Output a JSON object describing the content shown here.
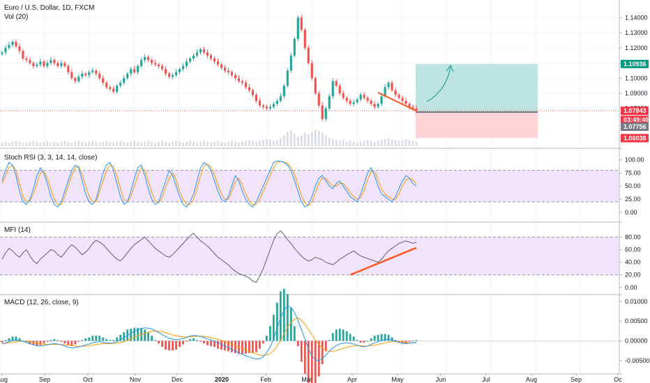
{
  "header": {
    "symbol": "Euro / U.S. Dollar, 1D, FXCM",
    "volume": "Vol (20)"
  },
  "price_tags": {
    "target": "1.10936",
    "current": "1.07843",
    "countdown": "03:49:40",
    "entry": "1.07756",
    "stop": "1.06038"
  },
  "colors": {
    "up": "#26a69a",
    "down": "#ef5350",
    "band": "#e1c4f9",
    "stoch_k": "#2196f3",
    "stoch_d": "#ff9800",
    "mfi": "#4caf50",
    "trend": "#ff5722",
    "target_zone": "#b2dfdb",
    "stop_zone": "#ffcdd2"
  },
  "chart_data": [
    {
      "type": "line",
      "name": "price",
      "title": "Euro / U.S. Dollar, 1D, FXCM",
      "ylim": [
        1.055,
        1.148
      ],
      "y_ticks": [
        "1.14000",
        "1.13000",
        "1.12000",
        "1.11000",
        "1.10000",
        "1.09000",
        "1.08000"
      ],
      "x_ticks": [
        "Aug",
        "Sep",
        "Oct",
        "Nov",
        "Dec",
        "2020",
        "Feb",
        "Mar",
        "Apr",
        "May",
        "Jun",
        "Jul",
        "Aug",
        "Sep",
        "Oc"
      ],
      "close": [
        1.117,
        1.12,
        1.122,
        1.124,
        1.121,
        1.118,
        1.113,
        1.112,
        1.11,
        1.108,
        1.109,
        1.111,
        1.108,
        1.11,
        1.112,
        1.11,
        1.108,
        1.11,
        1.108,
        1.104,
        1.1,
        1.098,
        1.101,
        1.103,
        1.102,
        1.104,
        1.105,
        1.103,
        1.1,
        1.097,
        1.094,
        1.093,
        1.091,
        1.095,
        1.097,
        1.1,
        1.103,
        1.106,
        1.104,
        1.108,
        1.112,
        1.114,
        1.112,
        1.11,
        1.109,
        1.108,
        1.106,
        1.103,
        1.101,
        1.102,
        1.104,
        1.106,
        1.108,
        1.111,
        1.113,
        1.115,
        1.117,
        1.119,
        1.117,
        1.115,
        1.113,
        1.111,
        1.109,
        1.107,
        1.105,
        1.104,
        1.102,
        1.1,
        1.098,
        1.097,
        1.094,
        1.092,
        1.089,
        1.085,
        1.082,
        1.081,
        1.08,
        1.081,
        1.083,
        1.085,
        1.088,
        1.095,
        1.105,
        1.115,
        1.126,
        1.14,
        1.132,
        1.12,
        1.11,
        1.1,
        1.09,
        1.082,
        1.073,
        1.08,
        1.088,
        1.098,
        1.095,
        1.09,
        1.087,
        1.085,
        1.083,
        1.084,
        1.086,
        1.089,
        1.087,
        1.085,
        1.083,
        1.081,
        1.083,
        1.088,
        1.094,
        1.097,
        1.092,
        1.089,
        1.087,
        1.085,
        1.083,
        1.081,
        1.08,
        1.0784
      ],
      "volume": [
        4,
        5,
        4,
        5,
        6,
        5,
        4,
        4,
        5,
        6,
        5,
        4,
        5,
        6,
        4,
        5,
        4,
        5,
        6,
        5,
        4,
        5,
        6,
        5,
        4,
        5,
        6,
        5,
        4,
        5,
        6,
        5,
        4,
        5,
        6,
        5,
        4,
        5,
        6,
        5,
        4,
        5,
        6,
        5,
        4,
        5,
        6,
        5,
        4,
        5,
        6,
        5,
        4,
        5,
        6,
        5,
        4,
        5,
        6,
        5,
        4,
        5,
        6,
        5,
        4,
        5,
        6,
        5,
        4,
        5,
        6,
        7,
        6,
        5,
        6,
        7,
        8,
        7,
        6,
        7,
        9,
        12,
        16,
        18,
        14,
        10,
        12,
        15,
        13,
        16,
        18,
        17,
        15,
        12,
        9,
        8,
        7,
        6,
        7,
        5,
        6,
        5,
        4,
        5,
        6,
        7,
        6,
        5,
        6,
        7,
        8,
        9,
        8,
        7,
        6,
        7,
        8,
        7,
        6,
        5
      ]
    },
    {
      "type": "line",
      "name": "Stoch RSI (3, 3, 14, 14, close)",
      "ylim": [
        -12,
        110
      ],
      "y_ticks": [
        "100.00",
        "75.00",
        "50.00",
        "25.00",
        "0.00"
      ],
      "band": [
        20,
        80
      ],
      "k": [
        60,
        80,
        95,
        90,
        70,
        40,
        20,
        15,
        25,
        45,
        70,
        85,
        75,
        55,
        30,
        15,
        10,
        20,
        40,
        60,
        80,
        90,
        85,
        60,
        35,
        20,
        15,
        25,
        50,
        75,
        90,
        95,
        80,
        55,
        30,
        15,
        20,
        40,
        65,
        85,
        90,
        70,
        45,
        25,
        15,
        20,
        40,
        60,
        80,
        70,
        50,
        30,
        15,
        10,
        20,
        35,
        60,
        85,
        95,
        90,
        80,
        60,
        40,
        25,
        20,
        30,
        50,
        70,
        60,
        40,
        25,
        15,
        10,
        20,
        35,
        50,
        65,
        80,
        95,
        98,
        97,
        95,
        90,
        80,
        60,
        40,
        20,
        10,
        15,
        30,
        50,
        65,
        70,
        60,
        50,
        45,
        55,
        60,
        50,
        40,
        30,
        25,
        20,
        35,
        55,
        75,
        85,
        70,
        50,
        35,
        30,
        25,
        20,
        30,
        45,
        60,
        70,
        65,
        55,
        50
      ],
      "d": [
        55,
        70,
        85,
        90,
        80,
        55,
        30,
        20,
        22,
        35,
        55,
        75,
        78,
        65,
        45,
        25,
        15,
        15,
        30,
        50,
        70,
        85,
        88,
        72,
        50,
        30,
        20,
        20,
        40,
        60,
        80,
        90,
        88,
        70,
        45,
        25,
        20,
        30,
        50,
        70,
        85,
        80,
        60,
        38,
        22,
        18,
        28,
        48,
        65,
        75,
        62,
        40,
        25,
        15,
        15,
        25,
        45,
        70,
        88,
        92,
        86,
        72,
        52,
        35,
        25,
        25,
        40,
        58,
        65,
        52,
        35,
        22,
        14,
        15,
        25,
        40,
        55,
        70,
        85,
        95,
        97,
        96,
        93,
        86,
        72,
        52,
        32,
        18,
        12,
        20,
        38,
        55,
        65,
        65,
        57,
        50,
        50,
        55,
        55,
        47,
        37,
        30,
        25,
        28,
        42,
        62,
        78,
        78,
        62,
        45,
        35,
        30,
        25,
        25,
        35,
        50,
        62,
        65,
        62,
        55
      ]
    },
    {
      "type": "line",
      "name": "MFI (14)",
      "ylim": [
        -8,
        96
      ],
      "y_ticks": [
        "80.00",
        "60.00",
        "40.00",
        "20.00",
        "0.00"
      ],
      "band": [
        20,
        80
      ],
      "values": [
        45,
        55,
        62,
        58,
        52,
        48,
        55,
        60,
        50,
        42,
        38,
        45,
        50,
        55,
        60,
        58,
        52,
        48,
        55,
        62,
        68,
        64,
        58,
        52,
        56,
        62,
        70,
        75,
        72,
        68,
        62,
        56,
        50,
        45,
        42,
        48,
        55,
        62,
        68,
        72,
        76,
        80,
        74,
        68,
        62,
        58,
        54,
        50,
        48,
        52,
        58,
        64,
        70,
        76,
        82,
        86,
        80,
        74,
        70,
        66,
        60,
        54,
        48,
        44,
        40,
        36,
        30,
        26,
        22,
        20,
        18,
        15,
        10,
        8,
        18,
        30,
        45,
        60,
        75,
        85,
        90,
        84,
        76,
        70,
        62,
        56,
        50,
        45,
        42,
        44,
        48,
        46,
        44,
        40,
        38,
        36,
        40,
        45,
        48,
        52,
        55,
        58,
        54,
        50,
        48,
        46,
        44,
        42,
        40,
        45,
        52,
        58,
        62,
        66,
        70,
        72,
        74,
        72,
        70,
        72
      ],
      "trend": [
        [
          100,
          20
        ],
        [
          119,
          63
        ]
      ]
    },
    {
      "type": "bar",
      "name": "MACD (12, 26, close, 9)",
      "ylim": [
        -0.0075,
        0.0105
      ],
      "y_ticks": [
        "0.01000",
        "0.00500",
        "0.00000",
        "-0.00500"
      ],
      "macd": [
        -0.0008,
        -0.0005,
        -0.0002,
        0.0001,
        0.0003,
        0.0002,
        -0.0001,
        -0.0004,
        -0.0007,
        -0.001,
        -0.0012,
        -0.0013,
        -0.0012,
        -0.001,
        -0.0008,
        -0.0007,
        -0.0008,
        -0.001,
        -0.0013,
        -0.0016,
        -0.0018,
        -0.0017,
        -0.0015,
        -0.0013,
        -0.001,
        -0.0008,
        -0.0005,
        -0.0003,
        -0.0002,
        -0.0003,
        -0.0005,
        -0.0006,
        -0.0005,
        -0.0002,
        0.0003,
        0.0008,
        0.0014,
        0.0019,
        0.0024,
        0.0028,
        0.0031,
        0.0033,
        0.0032,
        0.003,
        0.0026,
        0.0021,
        0.0016,
        0.0011,
        0.0007,
        0.0004,
        0.0003,
        0.0004,
        0.0006,
        0.0009,
        0.0012,
        0.0014,
        0.0013,
        0.0011,
        0.0008,
        0.0005,
        0.0002,
        -0.0001,
        -0.0005,
        -0.0009,
        -0.0013,
        -0.0017,
        -0.0021,
        -0.0026,
        -0.003,
        -0.0034,
        -0.0038,
        -0.0041,
        -0.0044,
        -0.0046,
        -0.0045,
        -0.004,
        -0.003,
        -0.0015,
        0.0005,
        0.003,
        0.0058,
        0.0078,
        0.0088,
        0.0085,
        0.0072,
        0.0052,
        0.0028,
        0.0004,
        -0.002,
        -0.0038,
        -0.0048,
        -0.005,
        -0.0045,
        -0.0036,
        -0.0026,
        -0.0018,
        -0.0012,
        -0.0008,
        -0.0006,
        -0.0005,
        -0.0006,
        -0.0008,
        -0.0011,
        -0.0014,
        -0.0015,
        -0.0013,
        -0.0009,
        -0.0005,
        -0.0002,
        0.0001,
        0.0003,
        0.0004,
        0.0002,
        -0.0001,
        -0.0004,
        -0.0006,
        -0.0007,
        -0.0006,
        -0.0005,
        -0.0004
      ],
      "signal": [
        -0.0006,
        -0.0006,
        -0.0005,
        -0.0004,
        -0.0002,
        -0.0001,
        -0.0001,
        -0.0002,
        -0.0003,
        -0.0005,
        -0.0006,
        -0.0008,
        -0.0009,
        -0.0009,
        -0.0009,
        -0.0009,
        -0.0009,
        -0.0009,
        -0.001,
        -0.0011,
        -0.0012,
        -0.0013,
        -0.0014,
        -0.0014,
        -0.0013,
        -0.0012,
        -0.0011,
        -0.0009,
        -0.0008,
        -0.0007,
        -0.0007,
        -0.0007,
        -0.0006,
        -0.0006,
        -0.0004,
        -0.0002,
        0.0001,
        0.0005,
        0.0009,
        0.0013,
        0.0016,
        0.002,
        0.0022,
        0.0024,
        0.0025,
        0.0024,
        0.0023,
        0.0021,
        0.0018,
        0.0015,
        0.0013,
        0.0011,
        0.001,
        0.001,
        0.001,
        0.0011,
        0.0012,
        0.0012,
        0.0011,
        0.001,
        0.0008,
        0.0006,
        0.0004,
        0.0001,
        -0.0002,
        -0.0005,
        -0.0008,
        -0.0012,
        -0.0015,
        -0.0019,
        -0.0023,
        -0.0027,
        -0.003,
        -0.0033,
        -0.0036,
        -0.0037,
        -0.0036,
        -0.0032,
        -0.0025,
        -0.0014,
        0.0001,
        0.0018,
        0.0034,
        0.0047,
        0.0055,
        0.0058,
        0.0052,
        0.0042,
        0.0029,
        0.0015,
        0.0002,
        -0.0009,
        -0.0018,
        -0.0024,
        -0.0027,
        -0.0027,
        -0.0025,
        -0.0022,
        -0.0019,
        -0.0016,
        -0.0014,
        -0.0013,
        -0.0012,
        -0.0012,
        -0.0013,
        -0.0013,
        -0.0012,
        -0.0011,
        -0.0009,
        -0.0007,
        -0.0005,
        -0.0003,
        -0.0002,
        -0.0002,
        -0.0002,
        -0.0003,
        -0.0004,
        -0.0005,
        -0.0005,
        -0.0005
      ]
    }
  ]
}
